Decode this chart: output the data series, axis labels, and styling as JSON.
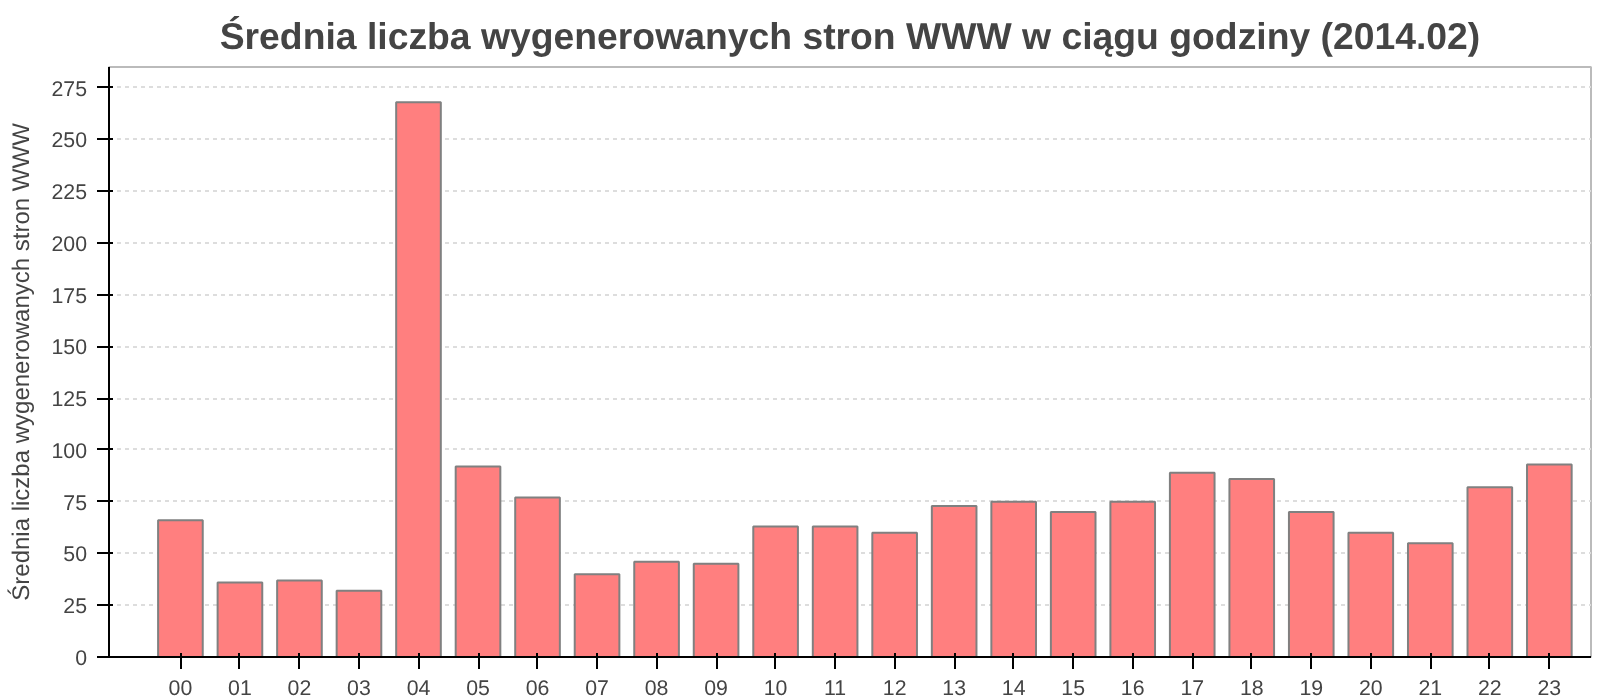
{
  "chart_data": {
    "type": "bar",
    "title": "Średnia liczba wygenerowanych stron WWW w ciągu godziny (2014.02)",
    "ylabel": "Średnia liczba wygenerowanych stron WWW",
    "categories": [
      "00",
      "01",
      "02",
      "03",
      "04",
      "05",
      "06",
      "07",
      "08",
      "09",
      "10",
      "11",
      "12",
      "13",
      "14",
      "15",
      "16",
      "17",
      "18",
      "19",
      "20",
      "21",
      "22",
      "23"
    ],
    "values": [
      66,
      36,
      37,
      32,
      268,
      92,
      77,
      40,
      46,
      45,
      63,
      63,
      60,
      73,
      75,
      70,
      75,
      89,
      86,
      70,
      60,
      55,
      82,
      93
    ],
    "color": "#ff7f7f",
    "ylim": [
      0,
      285
    ],
    "yticks": [
      0,
      25,
      50,
      75,
      100,
      125,
      150,
      175,
      200,
      225,
      250,
      275
    ],
    "grid": "y"
  }
}
